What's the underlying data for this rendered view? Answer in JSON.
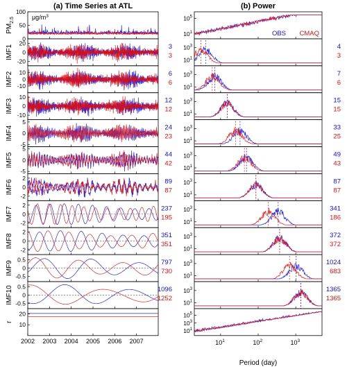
{
  "left": {
    "title": "(a) Time Series at ATL",
    "xticks": [
      "2002",
      "2003",
      "2004",
      "2005",
      "2006",
      "2007"
    ],
    "unit": "μg/m",
    "unit_sup": "3"
  },
  "right": {
    "title": "(b) Power",
    "xlabel": "Period (day)",
    "xticks": [
      {
        "base": "10",
        "exp": "1"
      },
      {
        "base": "10",
        "exp": "2"
      },
      {
        "base": "10",
        "exp": "3"
      }
    ],
    "legend": {
      "obs": "OBS",
      "model": "CMAQ"
    }
  },
  "colors": {
    "obs": "#1010e0",
    "model": "#e01010",
    "zero": "#555555",
    "axis": "#000000"
  },
  "rows": [
    {
      "label": "PM",
      "label_sub": "2.5",
      "yticks": [
        "0",
        "50",
        "100"
      ],
      "ylim": [
        0,
        100
      ],
      "rticks": [
        {
          "base": "10",
          "exp": "1"
        },
        {
          "base": "10",
          "exp": "5"
        }
      ],
      "obs_period": "",
      "model_period": ""
    },
    {
      "label": "IMF1",
      "yticks": [
        "-20",
        "0",
        "20"
      ],
      "ylim": [
        -30,
        30
      ],
      "rticks": [
        {
          "base": "10",
          "exp": "1"
        },
        {
          "base": "10",
          "exp": "3"
        }
      ],
      "obs_period": "3",
      "model_period": "3",
      "obs_periods": [
        "4"
      ],
      "model_periods": [
        "3"
      ]
    },
    {
      "label": "IMF2",
      "yticks": [
        "-10",
        "0",
        "10"
      ],
      "ylim": [
        -20,
        20
      ],
      "rticks": [
        {
          "base": "10",
          "exp": "1"
        },
        {
          "base": "10",
          "exp": "3"
        }
      ],
      "obs_period": "6",
      "model_period": "6",
      "obs_periods": [
        "7"
      ],
      "model_periods": [
        "6"
      ]
    },
    {
      "label": "IMF3",
      "yticks": [
        "-10",
        "0",
        "10"
      ],
      "ylim": [
        -15,
        15
      ],
      "rticks": [
        {
          "base": "10",
          "exp": "1"
        },
        {
          "base": "10",
          "exp": "3"
        }
      ],
      "obs_period": "12",
      "model_period": "12",
      "obs_periods": [
        "15"
      ],
      "model_periods": [
        "15"
      ]
    },
    {
      "label": "IMF4",
      "yticks": [
        "-5",
        "0",
        "5"
      ],
      "ylim": [
        -6,
        6
      ],
      "rticks": [
        {
          "base": "10",
          "exp": "1"
        },
        {
          "base": "10",
          "exp": "3"
        }
      ],
      "obs_period": "24",
      "model_period": "23",
      "obs_periods": [
        "33"
      ],
      "model_periods": [
        "25"
      ]
    },
    {
      "label": "IMF5",
      "yticks": [
        "-5",
        "0",
        "5"
      ],
      "ylim": [
        -6,
        6
      ],
      "rticks": [
        {
          "base": "10",
          "exp": "1"
        },
        {
          "base": "10",
          "exp": "3"
        }
      ],
      "obs_period": "44",
      "model_period": "42",
      "obs_periods": [
        "49"
      ],
      "model_periods": [
        "43"
      ]
    },
    {
      "label": "IMF6",
      "yticks": [
        "-2",
        "0",
        "2"
      ],
      "ylim": [
        -3,
        3
      ],
      "rticks": [
        {
          "base": "10",
          "exp": "1"
        },
        {
          "base": "10",
          "exp": "3"
        }
      ],
      "obs_period": "89",
      "model_period": "87",
      "obs_periods": [
        "87"
      ],
      "model_periods": [
        "87"
      ]
    },
    {
      "label": "IMF7",
      "yticks": [
        "-2",
        "0",
        "2"
      ],
      "ylim": [
        -3,
        3
      ],
      "rticks": [
        {
          "base": "10",
          "exp": "1"
        },
        {
          "base": "10",
          "exp": "3"
        }
      ],
      "obs_period": "237",
      "model_period": "195",
      "obs_periods": [
        "341"
      ],
      "model_periods": [
        "186"
      ]
    },
    {
      "label": "IMF8",
      "yticks": [
        "-2",
        "0",
        "2"
      ],
      "ylim": [
        -3,
        3
      ],
      "rticks": [
        {
          "base": "10",
          "exp": "1"
        },
        {
          "base": "10",
          "exp": "3"
        }
      ],
      "obs_period": "351",
      "model_period": "351",
      "obs_periods": [
        "372"
      ],
      "model_periods": [
        "372"
      ]
    },
    {
      "label": "IMF9",
      "yticks": [
        "-0.5",
        "0",
        "0.5"
      ],
      "ylim": [
        -0.8,
        0.8
      ],
      "rticks": [
        {
          "base": "10",
          "exp": "1"
        },
        {
          "base": "10",
          "exp": "3"
        }
      ],
      "obs_period": "797",
      "model_period": "730",
      "obs_periods": [
        "1024"
      ],
      "model_periods": [
        "683"
      ]
    },
    {
      "label": "IMF10",
      "yticks": [
        "-0.5",
        "0",
        "0.5"
      ],
      "ylim": [
        -0.8,
        0.8
      ],
      "rticks": [
        {
          "base": "10",
          "exp": "1"
        },
        {
          "base": "10",
          "exp": "3"
        }
      ],
      "obs_period": "1096",
      "model_period": "1252",
      "obs_periods": [
        "1365"
      ],
      "model_periods": [
        "1365"
      ]
    },
    {
      "label": "r",
      "yticks": [
        "10",
        "20"
      ],
      "ylim": [
        0,
        25
      ],
      "rticks": [
        {
          "base": "10",
          "exp": "1"
        },
        {
          "base": "10",
          "exp": "3"
        },
        {
          "base": "10",
          "exp": "5"
        }
      ],
      "obs_period": "",
      "model_period": ""
    }
  ],
  "chart_data": {
    "type": "line",
    "title": "(a) Time Series at ATL / (b) Power",
    "series": [
      {
        "name": "OBS"
      },
      {
        "name": "CMAQ"
      }
    ],
    "time_axis": {
      "xlim": [
        2002,
        2008
      ],
      "ticks": [
        2002,
        2003,
        2004,
        2005,
        2006,
        2007
      ]
    },
    "period_axis": {
      "scale": "log",
      "xlim_days": [
        2,
        5000
      ],
      "xlabel": "Period (day)"
    },
    "mean_periods_days": {
      "time_series": {
        "obs": [
          3,
          6,
          12,
          24,
          44,
          89,
          237,
          351,
          797,
          1096
        ],
        "cmaq": [
          3,
          6,
          12,
          23,
          42,
          87,
          195,
          351,
          730,
          1252
        ]
      },
      "power": {
        "obs": [
          4,
          7,
          15,
          33,
          49,
          87,
          341,
          372,
          1024,
          1365
        ],
        "cmaq": [
          3,
          6,
          15,
          25,
          43,
          87,
          186,
          372,
          683,
          1365
        ]
      }
    }
  }
}
